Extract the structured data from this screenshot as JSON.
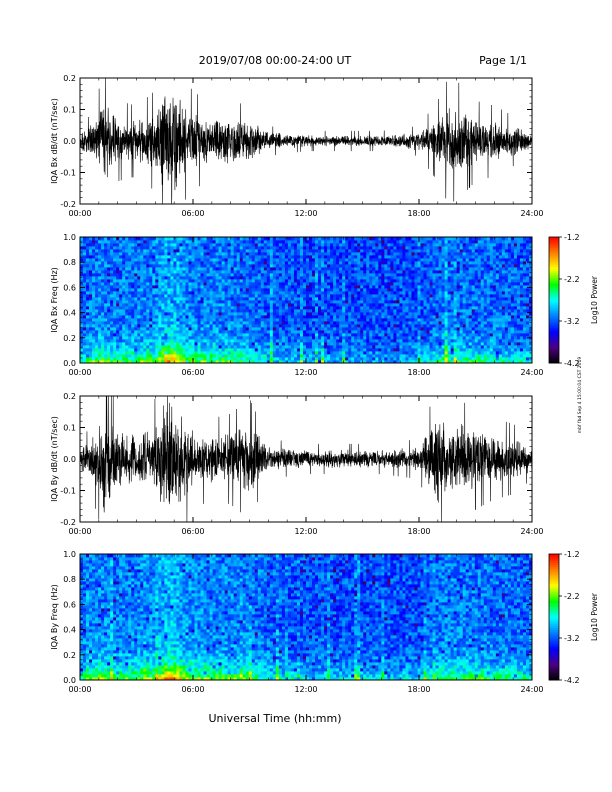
{
  "header": {
    "title": "2019/07/08  00:00-24:00 UT",
    "page": "Page 1/1"
  },
  "footer": {
    "xlabel": "Universal Time (hh:mm)",
    "side_note": "mbf fbd Sep 4 15:00:04 CST 2019"
  },
  "colors": {
    "trace": "#000000",
    "spectrogram_scale": [
      "#000000",
      "#4b0082",
      "#0000ff",
      "#0080ff",
      "#00ffff",
      "#00ff00",
      "#ffff00",
      "#ff8000",
      "#ff0000"
    ]
  },
  "chart_data": [
    {
      "type": "line",
      "ylabel": "IQA Bx dB/dt (nT/sec)",
      "xlim": [
        0,
        24
      ],
      "ylim": [
        -0.2,
        0.2
      ],
      "x_ticks": [
        "00:00",
        "06:00",
        "12:00",
        "18:00",
        "24:00"
      ],
      "y_ticks": [
        "-0.2",
        "-0.1",
        "0.0",
        "0.1",
        "0.2"
      ],
      "activity_envelope": {
        "hours": [
          0,
          0.5,
          1,
          1.2,
          2,
          3,
          4,
          4.5,
          5,
          5.5,
          6,
          7,
          8,
          9,
          10,
          12,
          14,
          16,
          18,
          19,
          19.5,
          20,
          21,
          22,
          23,
          24
        ],
        "amplitude": [
          0.03,
          0.05,
          0.1,
          0.15,
          0.08,
          0.07,
          0.1,
          0.2,
          0.2,
          0.12,
          0.1,
          0.07,
          0.08,
          0.07,
          0.03,
          0.02,
          0.02,
          0.02,
          0.03,
          0.08,
          0.12,
          0.12,
          0.08,
          0.07,
          0.05,
          0.03
        ]
      }
    },
    {
      "type": "heatmap",
      "ylabel": "IQA Bx Freq (Hz)",
      "xlim": [
        0,
        24
      ],
      "ylim": [
        0,
        1.0
      ],
      "x_ticks": [
        "00:00",
        "06:00",
        "12:00",
        "18:00",
        "24:00"
      ],
      "y_ticks": [
        "0.0",
        "0.2",
        "0.4",
        "0.6",
        "0.8",
        "1.0"
      ],
      "colorbar": {
        "label": "Log10 Power",
        "range": [
          -4.2,
          -1.2
        ],
        "ticks": [
          "-1.2",
          "-2.2",
          "-3.2",
          "-4.2"
        ]
      },
      "activity_envelope": {
        "hours": [
          0,
          1,
          2,
          4,
          4.5,
          5,
          5.5,
          6,
          9,
          10,
          12,
          18,
          19,
          19.5,
          20,
          22,
          24
        ],
        "level": [
          0.4,
          0.6,
          0.5,
          0.6,
          0.9,
          0.9,
          0.7,
          0.6,
          0.5,
          0.35,
          0.25,
          0.25,
          0.45,
          0.5,
          0.5,
          0.45,
          0.35
        ]
      }
    },
    {
      "type": "line",
      "ylabel": "IQA By dB/dt (nT/sec)",
      "xlim": [
        0,
        24
      ],
      "ylim": [
        -0.2,
        0.2
      ],
      "x_ticks": [
        "00:00",
        "06:00",
        "12:00",
        "18:00",
        "24:00"
      ],
      "y_ticks": [
        "-0.2",
        "-0.1",
        "0.0",
        "0.1",
        "0.2"
      ],
      "activity_envelope": {
        "hours": [
          0,
          0.5,
          1,
          1.2,
          2,
          3,
          4,
          4.5,
          5,
          5.5,
          6,
          7,
          8,
          9,
          10,
          12,
          14,
          16,
          18,
          19,
          19.5,
          20,
          21,
          22,
          23,
          24
        ],
        "amplitude": [
          0.04,
          0.06,
          0.12,
          0.2,
          0.1,
          0.08,
          0.12,
          0.2,
          0.2,
          0.14,
          0.1,
          0.08,
          0.09,
          0.12,
          0.04,
          0.03,
          0.03,
          0.03,
          0.04,
          0.15,
          0.12,
          0.12,
          0.1,
          0.08,
          0.07,
          0.04
        ]
      }
    },
    {
      "type": "heatmap",
      "ylabel": "IQA By Freq (Hz)",
      "xlim": [
        0,
        24
      ],
      "ylim": [
        0,
        1.0
      ],
      "x_ticks": [
        "00:00",
        "06:00",
        "12:00",
        "18:00",
        "24:00"
      ],
      "y_ticks": [
        "0.0",
        "0.2",
        "0.4",
        "0.6",
        "0.8",
        "1.0"
      ],
      "colorbar": {
        "label": "Log10 Power",
        "range": [
          -4.2,
          -1.2
        ],
        "ticks": [
          "-1.2",
          "-2.2",
          "-3.2",
          "-4.2"
        ]
      },
      "activity_envelope": {
        "hours": [
          0,
          1,
          2,
          4,
          4.5,
          5,
          5.5,
          6,
          9,
          10,
          12,
          18,
          19,
          19.5,
          20,
          22,
          24
        ],
        "level": [
          0.45,
          0.65,
          0.55,
          0.65,
          0.95,
          0.95,
          0.75,
          0.65,
          0.55,
          0.4,
          0.3,
          0.3,
          0.5,
          0.55,
          0.55,
          0.5,
          0.4
        ]
      }
    }
  ]
}
